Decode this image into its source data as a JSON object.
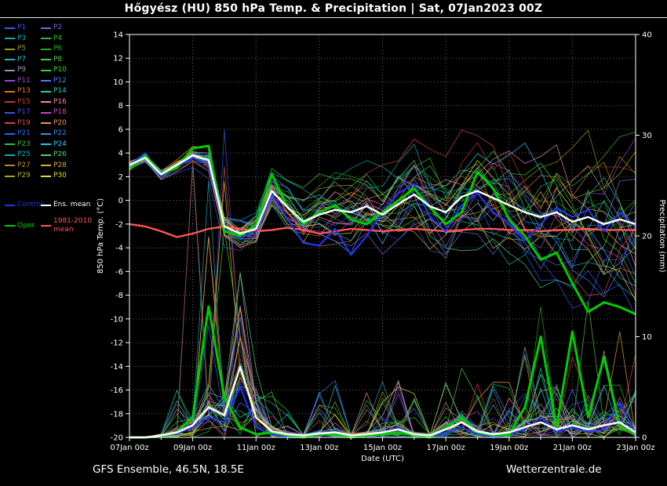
{
  "title": "Hőgyész  (HU)  850 hPa Temp. & Precipitation | Sat, 07Jan2023 00Z",
  "footer": {
    "left": "GFS Ensemble, 46.5N, 18.5E",
    "right": "Wetterzentrale.de"
  },
  "legend": {
    "members": [
      {
        "label": "P1",
        "color": "#4455ee"
      },
      {
        "label": "P2",
        "color": "#7766ee"
      },
      {
        "label": "P3",
        "color": "#11aaaa"
      },
      {
        "label": "P4",
        "color": "#22bb44"
      },
      {
        "label": "P5",
        "color": "#999911"
      },
      {
        "label": "P6",
        "color": "#22aa22"
      },
      {
        "label": "P7",
        "color": "#11bbcc"
      },
      {
        "label": "P8",
        "color": "#44cc44"
      },
      {
        "label": "P9",
        "color": "#9999aa"
      },
      {
        "label": "P10",
        "color": "#22dd22"
      },
      {
        "label": "P11",
        "color": "#9944cc"
      },
      {
        "label": "P12",
        "color": "#5577ff"
      },
      {
        "label": "P13",
        "color": "#dd7711"
      },
      {
        "label": "P14",
        "color": "#22ccaa"
      },
      {
        "label": "P15",
        "color": "#cc3333"
      },
      {
        "label": "P16",
        "color": "#ee88aa"
      },
      {
        "label": "P17",
        "color": "#3355dd"
      },
      {
        "label": "P18",
        "color": "#cc44cc"
      },
      {
        "label": "P19",
        "color": "#dd4444"
      },
      {
        "label": "P20",
        "color": "#ee9955"
      },
      {
        "label": "P21",
        "color": "#2266ff"
      },
      {
        "label": "P22",
        "color": "#4488ee"
      },
      {
        "label": "P23",
        "color": "#33bb33"
      },
      {
        "label": "P24",
        "color": "#22ccee"
      },
      {
        "label": "P25",
        "color": "#11aabb"
      },
      {
        "label": "P26",
        "color": "#55cc77"
      },
      {
        "label": "P27",
        "color": "#bb8833"
      },
      {
        "label": "P28",
        "color": "#ddaa33"
      },
      {
        "label": "P29",
        "color": "#aaaa22"
      },
      {
        "label": "P30",
        "color": "#dddd33"
      }
    ],
    "control": {
      "label": "Control",
      "color": "#2233ee"
    },
    "ens_mean": {
      "label": "Ens. mean",
      "color": "#ffffff"
    },
    "oper": {
      "label": "Oper",
      "color": "#00cc00"
    },
    "climate": {
      "label": "1981-2010 mean",
      "color": "#ff5555"
    }
  },
  "chart_data": {
    "type": "line",
    "title": "Hőgyész (HU) 850 hPa Temp. & Precipitation | Sat, 07Jan2023 00Z",
    "xlabel": "Date (UTC)",
    "ylabel_left": "850 hPa Temp. (°C)",
    "ylabel_right": "Precipitation (mm)",
    "x_ticks": [
      "07Jan 00z",
      "09Jan 00z",
      "11Jan 00z",
      "13Jan 00z",
      "15Jan 00z",
      "17Jan 00z",
      "19Jan 00z",
      "21Jan 00z",
      "23Jan 00z"
    ],
    "ylim_left": [
      -20,
      14
    ],
    "ytick_step_left": 2,
    "ylim_right": [
      0,
      40
    ],
    "yticks_right": [
      0,
      10,
      20,
      30,
      40
    ],
    "grid": true,
    "legend_position": "left",
    "x_hours": [
      0,
      12,
      24,
      36,
      48,
      60,
      72,
      84,
      96,
      108,
      120,
      132,
      144,
      156,
      168,
      180,
      192,
      204,
      216,
      228,
      240,
      252,
      264,
      276,
      288,
      300,
      312,
      324,
      336,
      348,
      360,
      372,
      384
    ],
    "temp": {
      "ens_mean": [
        3.0,
        3.6,
        2.2,
        3.0,
        3.8,
        3.4,
        -2.2,
        -2.8,
        -2.4,
        0.8,
        -0.6,
        -1.8,
        -1.2,
        -0.8,
        -1.0,
        -0.5,
        -1.2,
        -0.3,
        0.5,
        -0.5,
        -1.0,
        0.3,
        0.8,
        0.2,
        -0.4,
        -1.0,
        -1.4,
        -1.0,
        -1.8,
        -1.4,
        -2.0,
        -1.6,
        -2.0
      ],
      "control": [
        3.0,
        4.0,
        2.0,
        2.8,
        3.6,
        3.0,
        -2.4,
        -3.2,
        -2.6,
        0.5,
        -1.6,
        -3.6,
        -3.8,
        -2.4,
        -4.6,
        -3.0,
        -1.0,
        0.6,
        1.4,
        -1.4,
        -2.6,
        -0.4,
        0.6,
        -1.0,
        -2.0,
        -3.4,
        -2.0,
        -0.6,
        -1.4,
        -0.8,
        -2.6,
        -1.0,
        -2.2
      ],
      "oper": [
        2.6,
        3.8,
        2.2,
        2.8,
        4.4,
        4.6,
        -2.6,
        -3.0,
        -2.0,
        2.2,
        -0.6,
        -2.0,
        -1.0,
        -0.4,
        -1.6,
        -2.0,
        -1.0,
        0.0,
        1.0,
        -0.6,
        -2.0,
        -1.0,
        2.4,
        1.0,
        -1.6,
        -3.0,
        -5.0,
        -4.4,
        -7.0,
        -9.4,
        -8.6,
        -9.0,
        -9.6
      ],
      "climate_mean": [
        -2.0,
        -2.2,
        -2.6,
        -3.1,
        -2.8,
        -2.4,
        -2.2,
        -2.4,
        -2.6,
        -2.5,
        -2.3,
        -2.5,
        -2.8,
        -2.6,
        -2.4,
        -2.5,
        -2.6,
        -2.5,
        -2.4,
        -2.5,
        -2.6,
        -2.5,
        -2.4,
        -2.4,
        -2.5,
        -2.5,
        -2.6,
        -2.5,
        -2.5,
        -2.4,
        -2.5,
        -2.5,
        -2.5
      ],
      "ensemble_spread": [
        0.3,
        0.3,
        0.35,
        0.4,
        0.5,
        0.7,
        0.9,
        1.0,
        1.1,
        1.3,
        1.5,
        1.7,
        1.8,
        2.0,
        2.2,
        2.4,
        2.6,
        2.7,
        2.9,
        3.0,
        3.1,
        3.2,
        3.4,
        3.5,
        3.6,
        3.7,
        3.8,
        4.0,
        4.1,
        4.2,
        4.3,
        4.5,
        4.6
      ]
    },
    "precip": {
      "ens_mean": [
        0,
        0,
        0.2,
        0.5,
        1.2,
        3.0,
        2.2,
        7.0,
        2.0,
        0.6,
        0.3,
        0.2,
        0.4,
        0.5,
        0.2,
        0.3,
        0.5,
        0.8,
        0.3,
        0.2,
        0.8,
        1.5,
        0.6,
        0.3,
        0.5,
        1.0,
        1.5,
        0.8,
        1.2,
        0.8,
        1.2,
        1.5,
        0.5
      ],
      "control": [
        0,
        0,
        0.1,
        0.4,
        1.0,
        2.0,
        1.5,
        5.0,
        1.0,
        0.3,
        0,
        0,
        0.2,
        0.3,
        0,
        0.2,
        0.5,
        1.0,
        0.2,
        0,
        0.5,
        1.0,
        0.3,
        0,
        0.3,
        0.8,
        2.0,
        0.5,
        1.0,
        0.5,
        0.8,
        3.5,
        0.4
      ],
      "oper": [
        0,
        0,
        0.1,
        0.5,
        2.0,
        13.0,
        4.0,
        1.0,
        0.3,
        0.5,
        0.2,
        0,
        0.3,
        0.3,
        0,
        0.2,
        0.3,
        0.5,
        0.2,
        0,
        1.0,
        2.0,
        0.5,
        0.2,
        0.3,
        3.0,
        10.0,
        1.0,
        10.5,
        2.0,
        8.0,
        1.0,
        0.4
      ]
    }
  }
}
